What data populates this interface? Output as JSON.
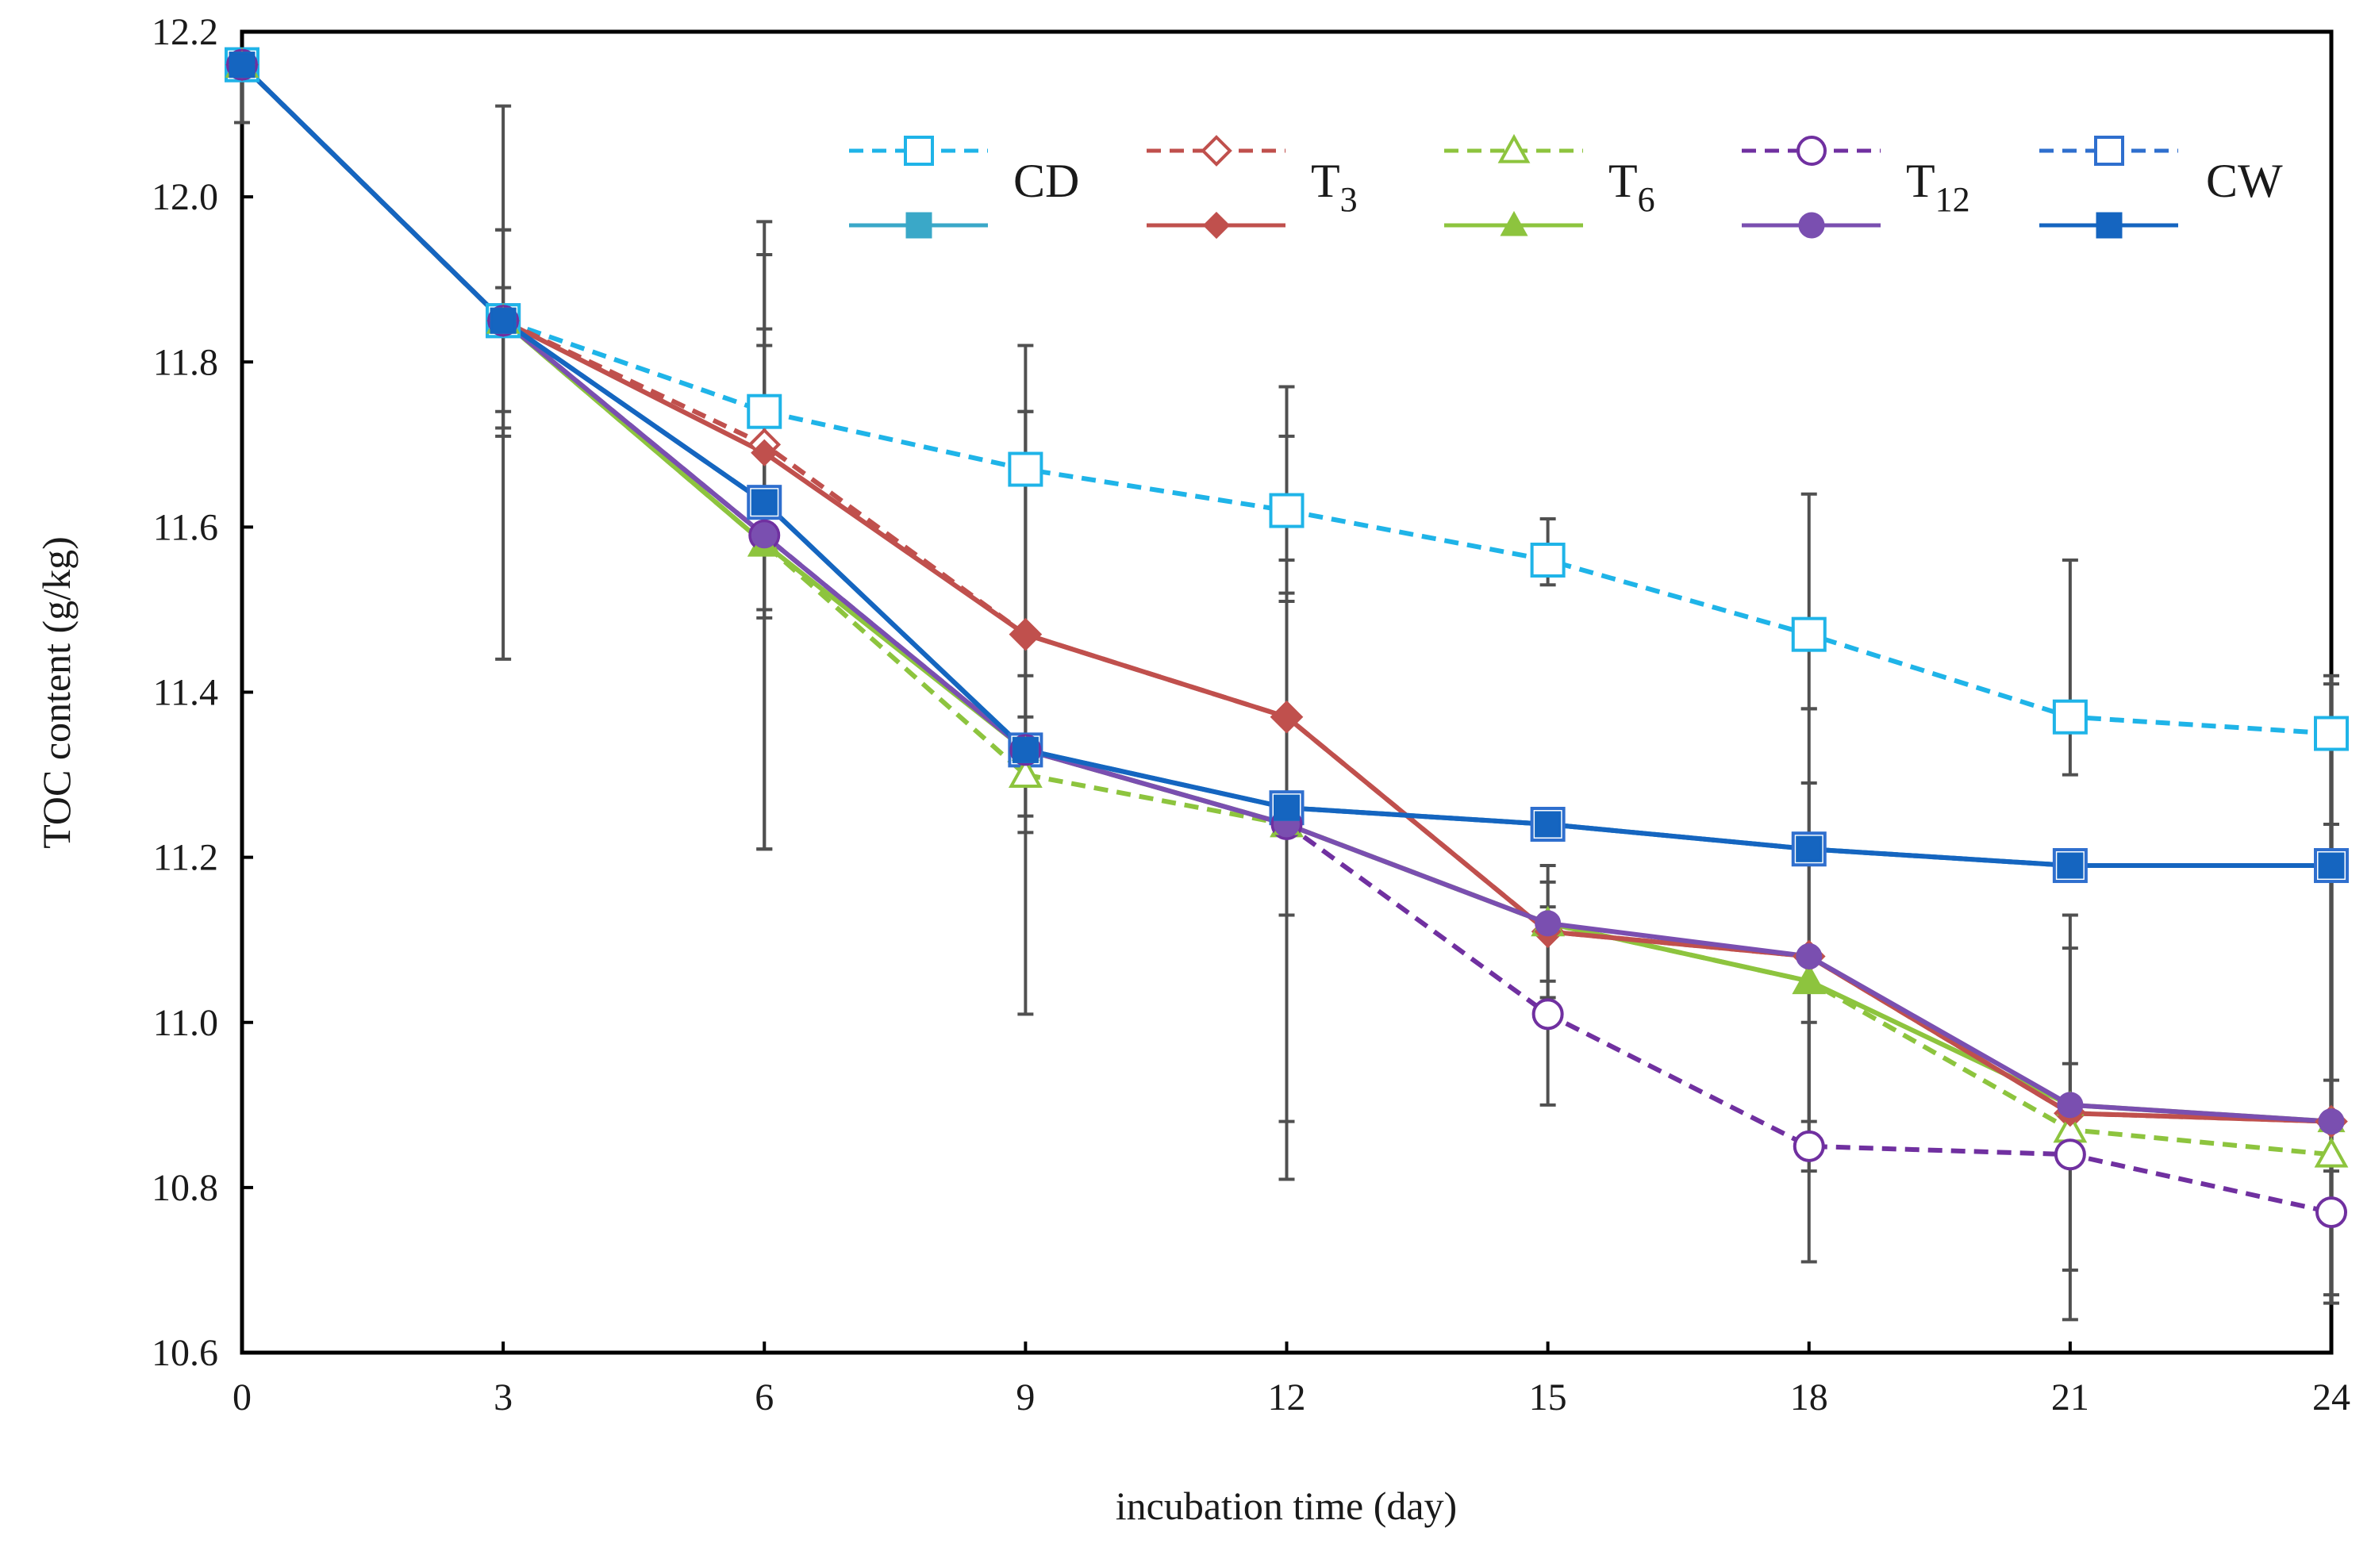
{
  "chart_data": {
    "type": "line",
    "xlabel": "incubation time (day)",
    "ylabel": "TOC content  (g/kg)",
    "x": [
      0,
      3,
      6,
      9,
      12,
      15,
      18,
      21,
      24
    ],
    "xlim": [
      0,
      24
    ],
    "ylim": [
      10.6,
      12.2
    ],
    "x_ticks": [
      "0",
      "3",
      "6",
      "9",
      "12",
      "15",
      "18",
      "21",
      "24"
    ],
    "y_ticks": [
      "10.6",
      "10.8",
      "11.0",
      "11.2",
      "11.4",
      "11.6",
      "11.8",
      "12.0",
      "12.2"
    ],
    "grid": false,
    "legend_position": "top",
    "legend_labels": [
      "CD",
      "T",
      "T",
      "T",
      "CW"
    ],
    "legend_subscripts": [
      "",
      "3",
      "6",
      "12",
      ""
    ],
    "series": [
      {
        "legend_index": 0,
        "color": "#1fb4e8",
        "dashed": true,
        "marker": "square",
        "filled": false,
        "values": [
          12.16,
          11.85,
          11.74,
          11.67,
          11.62,
          11.56,
          11.47,
          11.37,
          11.35
        ],
        "err_low": [
          12.09,
          11.74,
          11.5,
          11.37,
          11.51,
          11.53,
          11.38,
          11.3,
          11.24
        ],
        "err_high": [
          12.16,
          11.96,
          11.97,
          11.82,
          11.77,
          11.61,
          11.64,
          11.56,
          11.41
        ]
      },
      {
        "legend_index": 0,
        "color": "#3aa8c8",
        "dashed": false,
        "marker": "square",
        "filled": true,
        "values": [
          12.16,
          11.85,
          11.63,
          11.33,
          11.26,
          11.24,
          11.21,
          11.19,
          11.19
        ],
        "err_low": [],
        "err_high": []
      },
      {
        "legend_index": 1,
        "color": "#c0504d",
        "dashed": true,
        "marker": "diamond",
        "filled": false,
        "values": [
          12.16,
          11.85,
          11.7,
          11.47,
          11.37,
          11.11,
          11.08,
          10.89,
          10.88
        ],
        "err_low": [
          12.16,
          11.72,
          11.49,
          11.23,
          11.13,
          11.03,
          10.88,
          10.89,
          10.82
        ],
        "err_high": [
          12.16,
          11.89,
          11.84,
          11.74,
          11.71,
          11.19,
          11.29,
          10.95,
          10.93
        ]
      },
      {
        "legend_index": 1,
        "color": "#c0504d",
        "dashed": false,
        "marker": "diamond",
        "filled": true,
        "values": [
          12.16,
          11.85,
          11.69,
          11.47,
          11.37,
          11.11,
          11.08,
          10.89,
          10.88
        ],
        "err_low": [],
        "err_high": []
      },
      {
        "legend_index": 2,
        "color": "#8dc43e",
        "dashed": true,
        "marker": "triangle",
        "filled": false,
        "values": [
          12.16,
          11.85,
          11.58,
          11.3,
          11.24,
          11.12,
          11.05,
          10.87,
          10.84
        ],
        "err_low": [
          12.16,
          11.71,
          11.21,
          11.01,
          10.81,
          11.05,
          10.82,
          10.64,
          10.67
        ],
        "err_high": [
          12.16,
          11.96,
          11.93,
          11.74,
          11.52,
          11.17,
          11.38,
          11.13,
          11.42
        ]
      },
      {
        "legend_index": 2,
        "color": "#8dc43e",
        "dashed": false,
        "marker": "triangle",
        "filled": true,
        "values": [
          12.16,
          11.85,
          11.58,
          11.33,
          11.24,
          11.12,
          11.05,
          10.9,
          10.88
        ],
        "err_low": [],
        "err_high": []
      },
      {
        "legend_index": 3,
        "color": "#7030a0",
        "dashed": true,
        "marker": "circle",
        "filled": false,
        "values": [
          12.16,
          11.85,
          11.59,
          11.33,
          11.24,
          11.01,
          10.85,
          10.84,
          10.77
        ],
        "err_low": [
          12.16,
          11.44,
          11.21,
          11.25,
          10.88,
          10.9,
          10.71,
          10.7,
          10.66
        ],
        "err_high": [
          12.16,
          12.11,
          11.82,
          11.42,
          11.56,
          11.14,
          11.0,
          11.09,
          10.88
        ]
      },
      {
        "legend_index": 3,
        "color": "#7a4fb0",
        "dashed": false,
        "marker": "circle",
        "filled": true,
        "values": [
          12.16,
          11.85,
          11.59,
          11.33,
          11.24,
          11.12,
          11.08,
          10.9,
          10.88
        ],
        "err_low": [],
        "err_high": []
      },
      {
        "legend_index": 4,
        "color": "#2f6fce",
        "dashed": true,
        "marker": "square",
        "filled": false,
        "values": [
          12.16,
          11.85,
          11.63,
          11.33,
          11.26,
          11.24,
          11.21,
          11.19,
          11.19
        ],
        "err_low": [],
        "err_high": []
      },
      {
        "legend_index": 4,
        "color": "#1565c0",
        "dashed": false,
        "marker": "square",
        "filled": true,
        "values": [
          12.16,
          11.85,
          11.63,
          11.33,
          11.26,
          11.24,
          11.21,
          11.19,
          11.19
        ],
        "err_low": [],
        "err_high": []
      }
    ]
  }
}
